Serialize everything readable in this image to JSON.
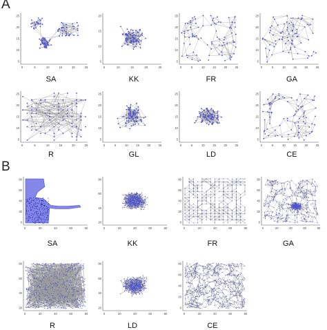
{
  "figure": {
    "panel_a_label": "A",
    "panel_b_label": "B",
    "node_color": "#4a4fd6",
    "edge_color": "#9a9a9a",
    "axis_color": "#555555"
  },
  "panel_a": {
    "plots": [
      {
        "label": "SA"
      },
      {
        "label": "KK"
      },
      {
        "label": "FR"
      },
      {
        "label": "GA"
      },
      {
        "label": "R"
      },
      {
        "label": "GL"
      },
      {
        "label": "LD"
      },
      {
        "label": "CE"
      }
    ]
  },
  "panel_b": {
    "plots": [
      {
        "label": "SA"
      },
      {
        "label": "KK"
      },
      {
        "label": "FR"
      },
      {
        "label": "GA"
      },
      {
        "label": "R"
      },
      {
        "label": "LD"
      },
      {
        "label": "CE"
      }
    ]
  }
}
